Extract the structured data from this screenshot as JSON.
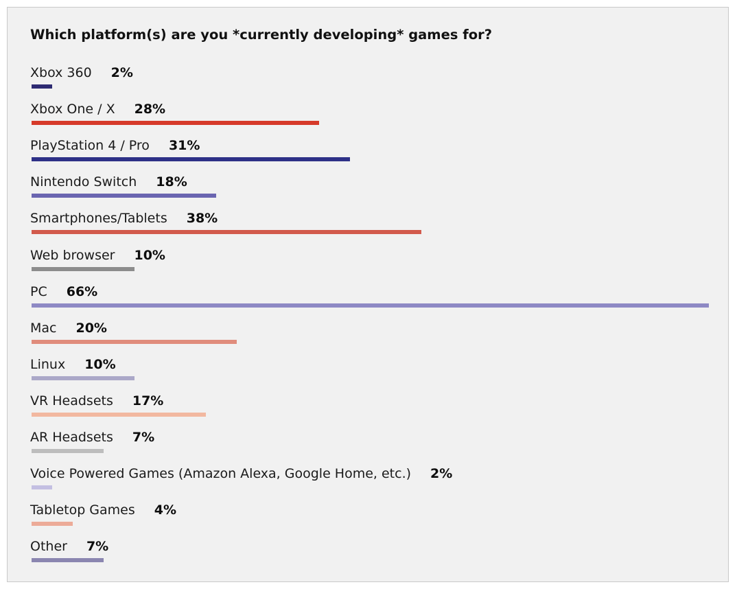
{
  "chart_data": {
    "type": "bar",
    "orientation": "horizontal",
    "title": "Which platform(s) are you *currently developing* games for?",
    "categories": [
      "Xbox 360",
      "Xbox One / X",
      "PlayStation 4 / Pro",
      "Nintendo Switch",
      "Smartphones/Tablets",
      "Web browser",
      "PC",
      "Mac",
      "Linux",
      "VR Headsets",
      "AR Headsets",
      "Voice Powered Games (Amazon Alexa, Google Home, etc.)",
      "Tabletop Games",
      "Other"
    ],
    "values": [
      2,
      28,
      31,
      18,
      38,
      10,
      66,
      20,
      10,
      17,
      7,
      2,
      4,
      7
    ],
    "value_labels": [
      "2%",
      "28%",
      "31%",
      "18%",
      "38%",
      "10%",
      "66%",
      "20%",
      "10%",
      "17%",
      "7%",
      "2%",
      "4%",
      "7%"
    ],
    "colors": [
      "#2e2b72",
      "#d63a2a",
      "#2e3187",
      "#6a65b0",
      "#d25a4c",
      "#8c8c8c",
      "#8e89c4",
      "#e08c7c",
      "#aba8c8",
      "#f2b8a0",
      "#bdbdbd",
      "#c3bfe2",
      "#ecab98",
      "#8b86b0"
    ],
    "xlim": [
      0,
      66
    ],
    "grid": false
  }
}
